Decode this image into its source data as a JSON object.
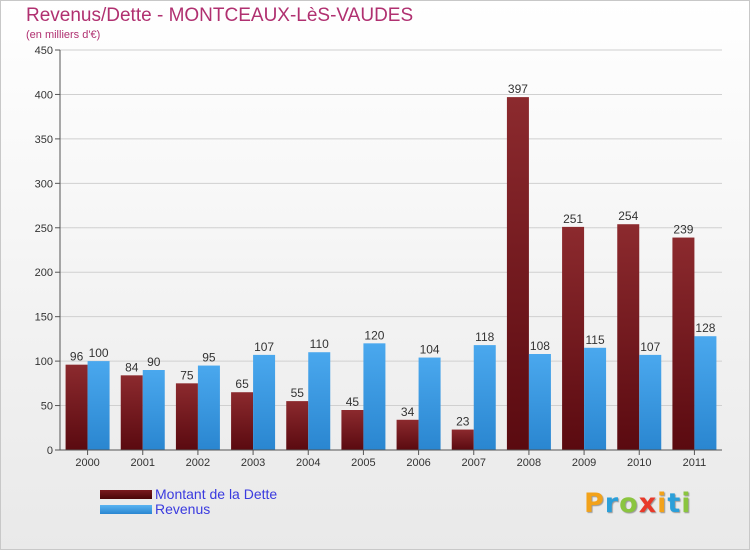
{
  "chart_data": {
    "type": "bar",
    "title": "Revenus/Dette - MONTCEAUX-LèS-VAUDES",
    "subtitle": "(en milliers d'€)",
    "categories": [
      "2000",
      "2001",
      "2002",
      "2003",
      "2004",
      "2005",
      "2006",
      "2007",
      "2008",
      "2009",
      "2010",
      "2011"
    ],
    "series": [
      {
        "name": "Montant de la Dette",
        "color": "#7a1a1f",
        "values": [
          96,
          84,
          75,
          65,
          55,
          45,
          34,
          23,
          397,
          251,
          254,
          239
        ]
      },
      {
        "name": "Revenus",
        "color": "#3d9ee8",
        "values": [
          100,
          90,
          95,
          107,
          110,
          120,
          104,
          118,
          108,
          115,
          107,
          128
        ]
      }
    ],
    "ylim": [
      0,
      450
    ],
    "yticks": [
      0,
      50,
      100,
      150,
      200,
      250,
      300,
      350,
      400,
      450
    ],
    "grid": true,
    "legend_position": "bottom-left"
  },
  "legend": {
    "debt_label": "Montant de la Dette",
    "revenue_label": "Revenus"
  },
  "logo": {
    "letters": [
      "P",
      "r",
      "o",
      "x",
      "i",
      "t",
      "i"
    ],
    "colors": [
      "#f2a21a",
      "#2b9fd9",
      "#8bc53f",
      "#e8392a",
      "#f2a21a",
      "#2b9fd9",
      "#8bc53f"
    ]
  }
}
